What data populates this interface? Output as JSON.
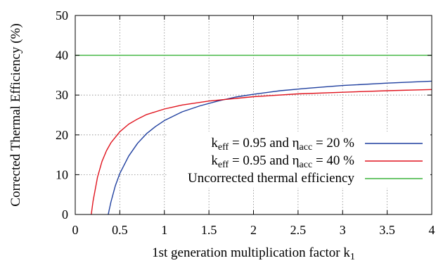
{
  "chart_data": {
    "type": "line",
    "xlabel_main": "1st generation multiplication factor k",
    "xlabel_sub": "1",
    "ylabel": "Corrected Thermal Efficiency (%)",
    "xlim": [
      0,
      4
    ],
    "ylim": [
      0,
      50
    ],
    "x_ticks": [
      0,
      0.5,
      1,
      1.5,
      2,
      2.5,
      3,
      3.5,
      4
    ],
    "x_tick_labels": [
      "0",
      "0.5",
      "1",
      "1.5",
      "2",
      "2.5",
      "3",
      "3.5",
      "4"
    ],
    "y_ticks": [
      0,
      10,
      20,
      30,
      40,
      50
    ],
    "y_tick_labels": [
      "0",
      "10",
      "20",
      "30",
      "40",
      "50"
    ],
    "grid": true,
    "legend_position": "lower-right",
    "series": [
      {
        "legend_k": "k",
        "legend_k_sub": "eff",
        "legend_mid": " = 0.95 and ",
        "legend_eta": "η",
        "legend_eta_sub": "acc",
        "legend_end": " = 20 %",
        "color": "#1f3f9f",
        "x": [
          0.37,
          0.4,
          0.45,
          0.5,
          0.6,
          0.7,
          0.8,
          0.9,
          1.0,
          1.2,
          1.4,
          1.6,
          1.8,
          2.0,
          2.3,
          2.6,
          3.0,
          3.5,
          4.0
        ],
        "y": [
          0.0,
          3.1,
          7.2,
          10.3,
          14.7,
          17.9,
          20.3,
          22.1,
          23.6,
          25.8,
          27.3,
          28.5,
          29.5,
          30.2,
          31.1,
          31.7,
          32.4,
          33.0,
          33.5
        ]
      },
      {
        "legend_k": "k",
        "legend_k_sub": "eff",
        "legend_mid": " = 0.95 and ",
        "legend_eta": "η",
        "legend_eta_sub": "acc",
        "legend_end": " = 40 %",
        "color": "#e0141e",
        "x": [
          0.18,
          0.2,
          0.25,
          0.3,
          0.35,
          0.4,
          0.5,
          0.6,
          0.7,
          0.8,
          1.0,
          1.2,
          1.5,
          2.0,
          2.5,
          3.0,
          3.5,
          4.0
        ],
        "y": [
          0.0,
          3.3,
          9.4,
          13.3,
          16.0,
          18.0,
          20.8,
          22.7,
          24.0,
          25.1,
          26.5,
          27.5,
          28.5,
          29.6,
          30.3,
          30.7,
          31.1,
          31.4
        ]
      },
      {
        "legend_text": "Uncorrected thermal efficiency",
        "color": "#3cb43c",
        "x": [
          0,
          4
        ],
        "y": [
          40,
          40
        ]
      }
    ]
  }
}
